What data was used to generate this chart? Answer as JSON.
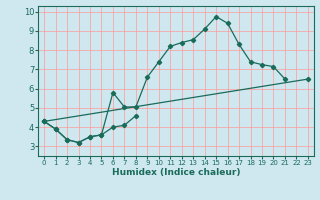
{
  "xlabel": "Humidex (Indice chaleur)",
  "bg_color": "#cfe8f0",
  "grid_color": "#ff9999",
  "line_color": "#1a6b5a",
  "marker": "D",
  "markersize": 2.2,
  "linewidth": 0.9,
  "xlim": [
    -0.5,
    23.5
  ],
  "ylim": [
    2.5,
    10.3
  ],
  "xticks": [
    0,
    1,
    2,
    3,
    4,
    5,
    6,
    7,
    8,
    9,
    10,
    11,
    12,
    13,
    14,
    15,
    16,
    17,
    18,
    19,
    20,
    21,
    22,
    23
  ],
  "yticks": [
    3,
    4,
    5,
    6,
    7,
    8,
    9,
    10
  ],
  "line1_x": [
    0,
    1,
    2,
    3,
    4,
    5,
    6,
    7,
    8,
    9,
    10,
    11,
    12,
    13,
    14,
    15,
    16,
    17,
    18,
    19,
    20,
    21
  ],
  "line1_y": [
    4.3,
    3.9,
    3.35,
    3.2,
    3.5,
    3.6,
    5.8,
    5.05,
    5.05,
    6.6,
    7.4,
    8.2,
    8.4,
    8.55,
    9.1,
    9.75,
    9.4,
    8.3,
    7.4,
    7.25,
    7.15,
    6.5
  ],
  "line2_x": [
    0,
    1,
    2,
    3,
    4,
    5,
    6,
    7,
    8
  ],
  "line2_y": [
    4.3,
    3.9,
    3.35,
    3.2,
    3.5,
    3.6,
    4.0,
    4.1,
    4.6
  ],
  "line3_x": [
    0,
    23
  ],
  "line3_y": [
    4.3,
    6.5
  ]
}
